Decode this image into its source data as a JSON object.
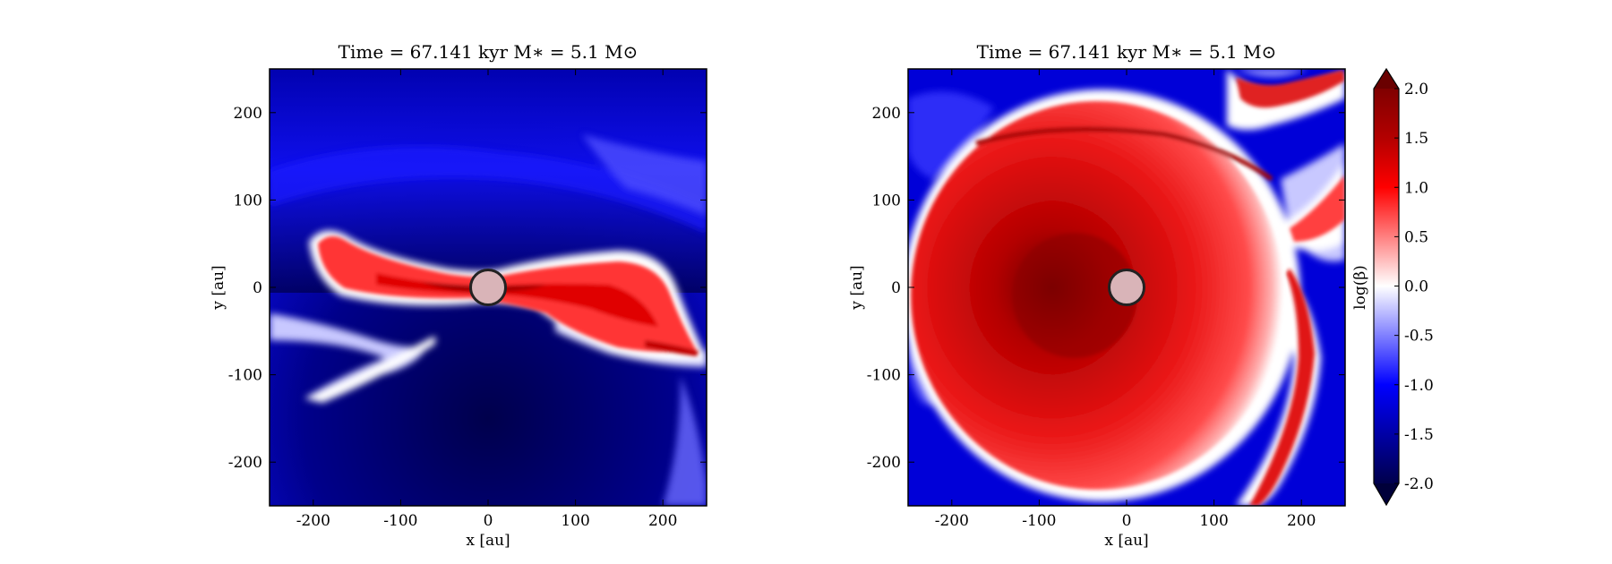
{
  "chart_data": [
    {
      "type": "heatmap",
      "panel": "left",
      "title": "Time = 67.141 kyr    M∗ = 5.1 M⊙",
      "xlabel": "x [au]",
      "ylabel": "y [au]",
      "xlim": [
        -250,
        250
      ],
      "ylim": [
        -250,
        250
      ],
      "xticks": [
        -200,
        -100,
        0,
        100,
        200
      ],
      "xtick_labels": [
        "-200",
        "-100",
        "0",
        "100",
        "200"
      ],
      "yticks": [
        200,
        100,
        0,
        -100,
        -200
      ],
      "ytick_labels": [
        "200",
        "100",
        "0",
        "-100",
        "-200"
      ],
      "star": {
        "x": 0,
        "y": 0,
        "radius_au": 20
      },
      "colormap": "seismic",
      "field": "log(β)",
      "structure": "edge-on disk: high log(β) band along y≈0 from x≈-200 to x≈250, low log(β) outflow cavity above and below"
    },
    {
      "type": "heatmap",
      "panel": "right",
      "title": "Time = 67.141 kyr    M∗ = 5.1 M⊙",
      "xlabel": "x [au]",
      "ylabel": "y [au]",
      "xlim": [
        -250,
        250
      ],
      "ylim": [
        -250,
        250
      ],
      "xticks": [
        -200,
        -100,
        0,
        100,
        200
      ],
      "xtick_labels": [
        "-200",
        "-100",
        "0",
        "100",
        "200"
      ],
      "yticks": [
        200,
        100,
        0,
        -100,
        -200
      ],
      "ytick_labels": [
        "200",
        "100",
        "0",
        "-100",
        "-200"
      ],
      "star": {
        "x": 0,
        "y": 0,
        "radius_au": 20
      },
      "colormap": "seismic",
      "field": "log(β)",
      "structure": "face-on disk: high log(β) region of radius ~190 au centred near the star, spiral arms at the edges"
    }
  ],
  "colorbar": {
    "label": "log(β)",
    "range": [
      -2.0,
      2.0
    ],
    "ticks": [
      2.0,
      1.5,
      1.0,
      0.5,
      0.0,
      -0.5,
      -1.0,
      -1.5,
      -2.0
    ],
    "tick_labels": [
      "2.0",
      "1.5",
      "1.0",
      "0.5",
      "0.0",
      "-0.5",
      "-1.0",
      "-1.5",
      "-2.0"
    ],
    "extend": "both",
    "colors": {
      "low": "#00004c",
      "mid_low": "#0000ff",
      "center": "#ffffff",
      "mid_high": "#ff0000",
      "high": "#800000"
    }
  },
  "colors": {
    "star_fill": "#d9b4b8",
    "star_edge": "#222222"
  }
}
